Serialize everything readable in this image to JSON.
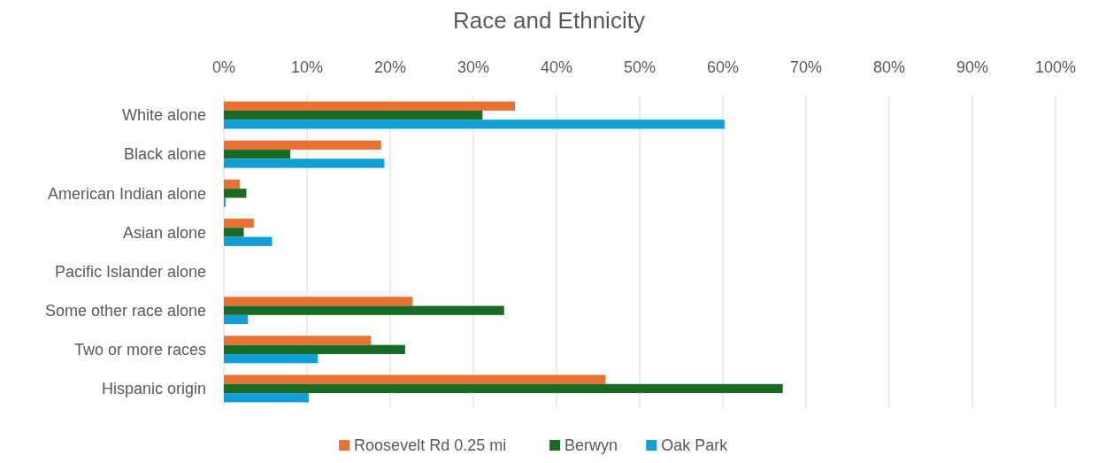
{
  "chart_data": {
    "type": "bar",
    "orientation": "horizontal",
    "title": "Race and Ethnicity",
    "categories": [
      "White alone",
      "Black alone",
      "American Indian alone",
      "Asian alone",
      "Pacific Islander alone",
      "Some other race alone",
      "Two or more races",
      "Hispanic origin"
    ],
    "series": [
      {
        "name": "Roosevelt Rd 0.25 mi",
        "color": "#e97132",
        "values": [
          35.0,
          18.9,
          1.9,
          3.6,
          0,
          22.7,
          17.7,
          45.9
        ]
      },
      {
        "name": "Berwyn",
        "color": "#196b24",
        "values": [
          31.1,
          8.0,
          2.7,
          2.4,
          0,
          33.7,
          21.8,
          67.2
        ]
      },
      {
        "name": "Oak Park",
        "color": "#0f9ed5",
        "values": [
          60.2,
          19.3,
          0.2,
          5.8,
          0,
          2.9,
          11.3,
          10.2
        ]
      }
    ],
    "xlim": [
      0,
      100
    ],
    "xticks": [
      {
        "value": 0,
        "label": "0%"
      },
      {
        "value": 10,
        "label": "10%"
      },
      {
        "value": 20,
        "label": "20%"
      },
      {
        "value": 30,
        "label": "30%"
      },
      {
        "value": 40,
        "label": "40%"
      },
      {
        "value": 50,
        "label": "50%"
      },
      {
        "value": 60,
        "label": "60%"
      },
      {
        "value": 70,
        "label": "70%"
      },
      {
        "value": 80,
        "label": "80%"
      },
      {
        "value": 90,
        "label": "90%"
      },
      {
        "value": 100,
        "label": "100%"
      }
    ],
    "grid": "x",
    "legend": "bottom"
  }
}
